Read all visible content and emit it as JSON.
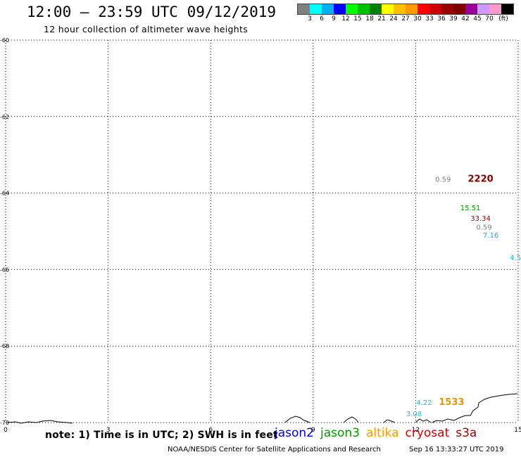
{
  "header": {
    "title": "12:00 – 23:59 UTC 09/12/2019",
    "subtitle": "12 hour collection of altimeter wave heights"
  },
  "scale": {
    "colors": [
      "#808080",
      "#00ffff",
      "#00b0f0",
      "#0000ff",
      "#00ff00",
      "#00c000",
      "#008000",
      "#ffff00",
      "#ffc000",
      "#ff9900",
      "#ff0000",
      "#cc0000",
      "#990000",
      "#800000",
      "#990099",
      "#cc99ff",
      "#ff99cc",
      "#000000"
    ],
    "labels": [
      "3",
      "6",
      "9",
      "12",
      "15",
      "18",
      "21",
      "24",
      "27",
      "30",
      "33",
      "36",
      "39",
      "42",
      "45",
      "70",
      "(ft)"
    ]
  },
  "map": {
    "x_range": [
      0,
      15
    ],
    "y_range": [
      -60,
      -70
    ],
    "x_ticks": [
      "0",
      "3",
      "6",
      "9",
      "12",
      "15"
    ],
    "y_ticks": [
      "-60",
      "-62",
      "-64",
      "-66",
      "-68",
      "-70"
    ],
    "readings": [
      {
        "text": "0.59",
        "color": "#808080",
        "x": 12.8,
        "y": -63.7
      },
      {
        "text": "2220",
        "color": "#800000",
        "x": 13.9,
        "y": -63.7
      },
      {
        "text": "15.51",
        "color": "#00a000",
        "x": 13.6,
        "y": -64.45
      },
      {
        "text": "33.34",
        "color": "#990000",
        "x": 13.9,
        "y": -64.72
      },
      {
        "text": "0.59",
        "color": "#808080",
        "x": 14.0,
        "y": -64.95
      },
      {
        "text": "7.16",
        "color": "#00b0f0",
        "x": 14.2,
        "y": -65.17
      },
      {
        "text": "4.5",
        "color": "#00c0e0",
        "x": 14.92,
        "y": -65.75
      },
      {
        "text": "4.22",
        "color": "#00c8e8",
        "x": 12.25,
        "y": -69.54
      },
      {
        "text": "1533",
        "color": "#e69500",
        "x": 13.05,
        "y": -69.54
      },
      {
        "text": "3.08",
        "color": "#00c8e8",
        "x": 11.95,
        "y": -69.83
      }
    ]
  },
  "footer": {
    "note": "note: 1) Time is in UTC; 2) SWH is in feet",
    "satellites": [
      {
        "name": "jason2",
        "color": "#0000cc"
      },
      {
        "name": "jason3",
        "color": "#009900"
      },
      {
        "name": "altika",
        "color": "#ff9900"
      },
      {
        "name": "cryosat",
        "color": "#cc0000"
      },
      {
        "name": "s3a",
        "color": "#990000"
      }
    ],
    "credit": "NOAA/NESDIS Center for Satellite Applications and Research",
    "timestamp": "Sep 16 13:33:27 UTC 2019"
  }
}
